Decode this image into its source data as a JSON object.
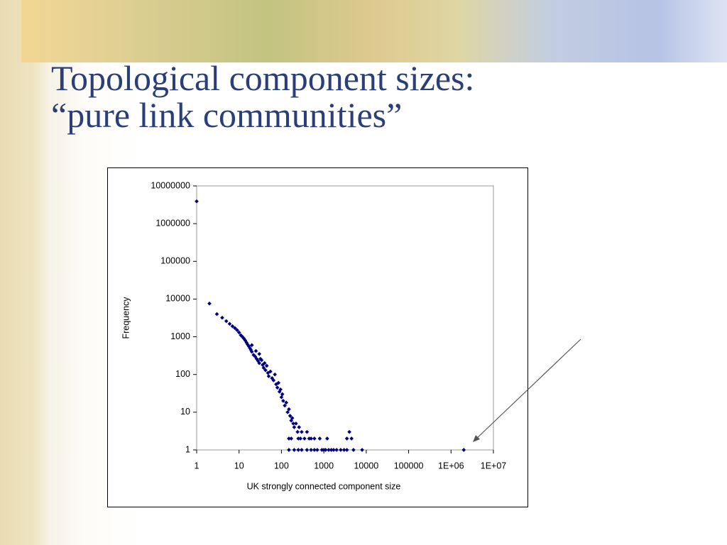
{
  "slide": {
    "title": [
      "Topological component sizes:",
      "“pure link communities”"
    ]
  },
  "chart_data": {
    "type": "scatter",
    "color": "#000080",
    "log_x": true,
    "log_y": true,
    "x_label": "UK strongly connected component size",
    "y_label": "Frequency",
    "xlim": [
      1,
      10000000
    ],
    "ylim": [
      1,
      10000000
    ],
    "xticks": [
      1,
      10,
      100,
      1000,
      10000,
      100000,
      {
        "value": 1000000,
        "label": "1E+06"
      },
      {
        "value": 10000000,
        "label": "1E+07"
      }
    ],
    "yticks": [
      1,
      10,
      100,
      1000,
      10000,
      100000,
      1000000,
      10000000
    ],
    "x": [
      1,
      2,
      3,
      4,
      5,
      6,
      7,
      8,
      9,
      10,
      11,
      12,
      13,
      14,
      15,
      16,
      17,
      18,
      19,
      20,
      22,
      24,
      26,
      28,
      30,
      32,
      34,
      36,
      38,
      40,
      42,
      45,
      48,
      50,
      55,
      60,
      65,
      70,
      75,
      80,
      85,
      90,
      95,
      100,
      105,
      110,
      120,
      130,
      140,
      150,
      160,
      170,
      180,
      190,
      200,
      220,
      240,
      260,
      280,
      300,
      350,
      400,
      450,
      500,
      600,
      700,
      800,
      1000,
      1200,
      1500,
      2000,
      3000,
      4000,
      4500,
      5000,
      8000,
      2000000,
      150,
      200,
      250,
      300,
      400,
      500,
      600,
      900,
      1100,
      1300,
      1700,
      2500,
      3500,
      150,
      170,
      250,
      3500,
      20,
      25,
      30
    ],
    "values": [
      3900000,
      7600,
      4000,
      3200,
      2600,
      2200,
      1900,
      1700,
      1500,
      1300,
      1100,
      1000,
      900,
      800,
      700,
      620,
      560,
      500,
      450,
      400,
      330,
      300,
      260,
      230,
      200,
      260,
      240,
      180,
      150,
      200,
      130,
      170,
      110,
      90,
      120,
      80,
      70,
      100,
      55,
      45,
      60,
      35,
      40,
      25,
      30,
      20,
      15,
      18,
      10,
      12,
      8,
      6,
      7,
      5,
      4,
      5,
      3,
      4,
      2,
      3,
      2,
      3,
      2,
      2,
      2,
      1,
      2,
      1,
      2,
      1,
      1,
      1,
      3,
      2,
      1,
      1,
      1,
      1,
      1,
      1,
      1,
      1,
      1,
      1,
      1,
      1,
      1,
      1,
      1,
      1,
      2,
      2,
      2,
      2,
      600,
      420,
      350
    ]
  }
}
